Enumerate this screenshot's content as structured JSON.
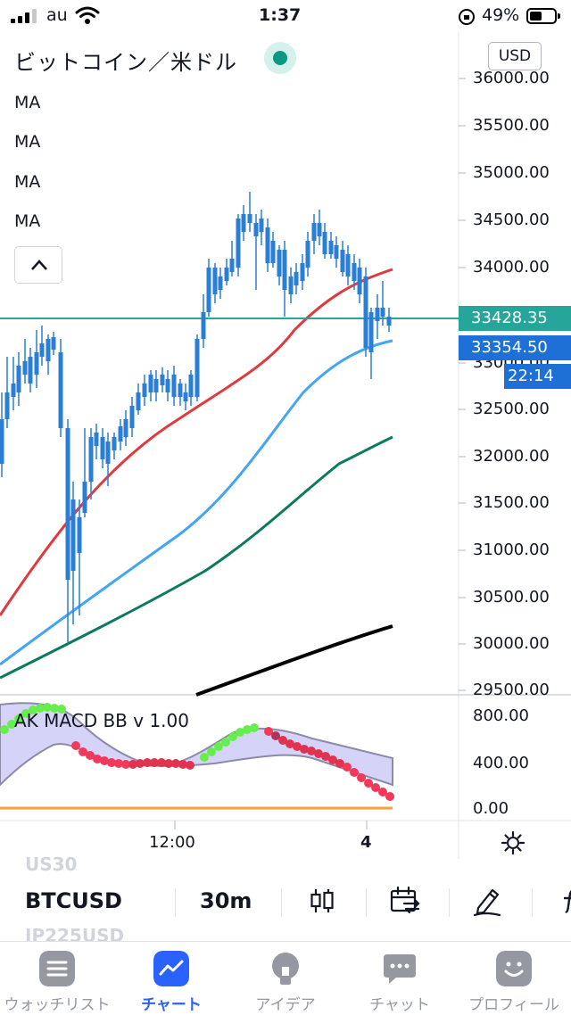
{
  "status_bar": {
    "carrier": "au",
    "time": "1:37",
    "battery": "49%"
  },
  "chart": {
    "symbol_name": "ビットコイン／米ドル",
    "indicators": [
      "MA",
      "MA",
      "MA",
      "MA"
    ],
    "currency": "USD",
    "price_axis": [
      "36000.00",
      "35500.00",
      "35000.00",
      "34500.00",
      "34000.00",
      "33000.00",
      "32500.00",
      "32000.00",
      "31500.00",
      "31000.00",
      "30500.00",
      "30000.00",
      "29500.00"
    ],
    "last_price": "33428.35",
    "bid_price": "33354.50",
    "countdown": "22:14",
    "time_axis": [
      "12:00",
      "4"
    ],
    "colors": {
      "up": "#e0393e",
      "down": "#2a7fd4",
      "ma_red": "#e0393e",
      "ma_blue": "#42a5f5",
      "ma_green": "#0b7a5e",
      "ma_black": "#000000",
      "last_line": "#26a69a"
    }
  },
  "indicator_pane": {
    "title": "AK MACD BB v 1.00",
    "axis": [
      "800.00",
      "400.00",
      "0.00"
    ]
  },
  "toolbar": {
    "symbol": "BTCUSD",
    "interval": "30m",
    "ghost_top": "US30",
    "ghost_bottom": "JP225USD"
  },
  "nav": [
    {
      "label": "ウォッチリスト",
      "icon": "watchlist-icon"
    },
    {
      "label": "チャート",
      "icon": "chart-icon"
    },
    {
      "label": "アイデア",
      "icon": "ideas-icon"
    },
    {
      "label": "チャット",
      "icon": "chat-icon"
    },
    {
      "label": "プロフィール",
      "icon": "profile-icon"
    }
  ]
}
